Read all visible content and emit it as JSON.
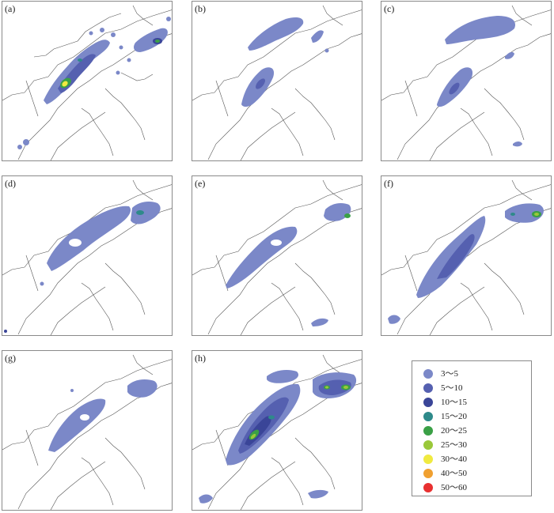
{
  "panels": [
    {
      "id": "a",
      "label": "(a)"
    },
    {
      "id": "b",
      "label": "(b)"
    },
    {
      "id": "c",
      "label": "(c)"
    },
    {
      "id": "d",
      "label": "(d)"
    },
    {
      "id": "e",
      "label": "(e)"
    },
    {
      "id": "f",
      "label": "(f)"
    },
    {
      "id": "g",
      "label": "(g)"
    },
    {
      "id": "h",
      "label": "(h)"
    }
  ],
  "legend": {
    "items": [
      {
        "label": "3～5",
        "color": "#7b88c8"
      },
      {
        "label": "5～10",
        "color": "#5560b0"
      },
      {
        "label": "10～15",
        "color": "#3a4598"
      },
      {
        "label": "15～20",
        "color": "#2e8a8a"
      },
      {
        "label": "20～25",
        "color": "#3aa046"
      },
      {
        "label": "25～30",
        "color": "#9ac83a"
      },
      {
        "label": "30～40",
        "color": "#f0ea40"
      },
      {
        "label": "40～50",
        "color": "#f0a030"
      },
      {
        "label": "50～60",
        "color": "#e83030"
      }
    ]
  }
}
